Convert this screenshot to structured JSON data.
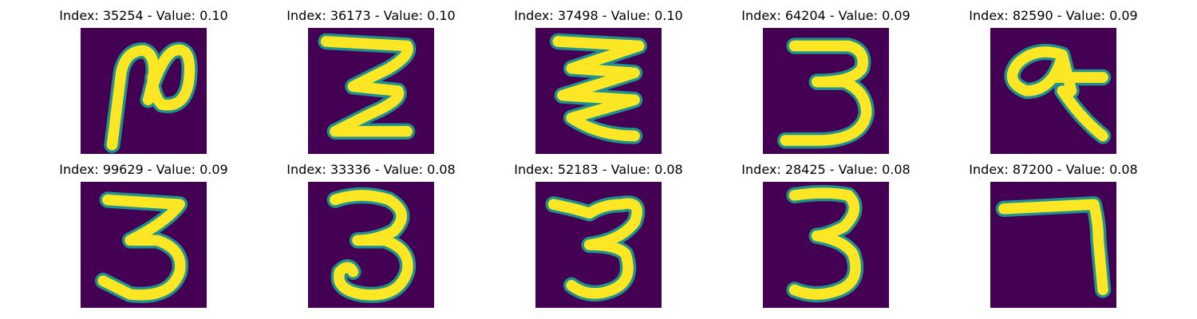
{
  "chart_data": [
    {
      "type": "image",
      "title": "Index: 35254 - Value: 0.10",
      "index": 35254,
      "value": 0.1,
      "depicted": "2"
    },
    {
      "type": "image",
      "title": "Index: 36173 - Value: 0.10",
      "index": 36173,
      "value": 0.1,
      "depicted": "3"
    },
    {
      "type": "image",
      "title": "Index: 37498 - Value: 0.10",
      "index": 37498,
      "value": 0.1,
      "depicted": "3"
    },
    {
      "type": "image",
      "title": "Index: 64204 - Value: 0.09",
      "index": 64204,
      "value": 0.09,
      "depicted": "3"
    },
    {
      "type": "image",
      "title": "Index: 82590 - Value: 0.09",
      "index": 82590,
      "value": 0.09,
      "depicted": "4"
    },
    {
      "type": "image",
      "title": "Index: 99629 - Value: 0.09",
      "index": 99629,
      "value": 0.09,
      "depicted": "3"
    },
    {
      "type": "image",
      "title": "Index: 33336 - Value: 0.08",
      "index": 33336,
      "value": 0.08,
      "depicted": "3"
    },
    {
      "type": "image",
      "title": "Index: 52183 - Value: 0.08",
      "index": 52183,
      "value": 0.08,
      "depicted": "3"
    },
    {
      "type": "image",
      "title": "Index: 28425 - Value: 0.08",
      "index": 28425,
      "value": 0.08,
      "depicted": "3"
    },
    {
      "type": "image",
      "title": "Index: 87200 - Value: 0.08",
      "index": 87200,
      "value": 0.08,
      "depicted": "7"
    }
  ],
  "colors": {
    "background": "#440154",
    "stroke_edge": "#21918c",
    "stroke_core": "#fde725"
  }
}
